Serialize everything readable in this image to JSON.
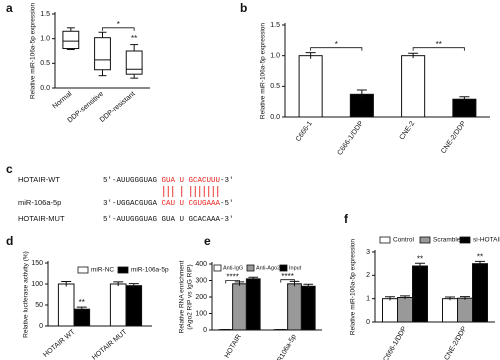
{
  "chart_data": [
    {
      "type": "box",
      "panel": "a",
      "y_label": "Relative miR-106a-5p expression",
      "categories": [
        "Normal",
        "DDP-sensitive",
        "DDP-resistant"
      ],
      "boxes": [
        {
          "min": 0.78,
          "q1": 0.8,
          "median": 0.95,
          "q3": 1.15,
          "max": 1.22
        },
        {
          "min": 0.25,
          "q1": 0.37,
          "median": 0.57,
          "q3": 1.02,
          "max": 1.13
        },
        {
          "min": 0.2,
          "q1": 0.28,
          "median": 0.38,
          "q3": 0.75,
          "max": 0.88
        }
      ],
      "color": "#ffffff",
      "ylim": [
        0,
        1.5
      ],
      "yticks": [
        {
          "value": 0,
          "label": "0.0"
        },
        {
          "value": 0.5,
          "label": "0.5"
        },
        {
          "value": 1,
          "label": "1.0"
        },
        {
          "value": 1.5,
          "label": "1.5"
        }
      ],
      "annotations": [
        "*",
        "**"
      ]
    },
    {
      "type": "bar",
      "panel": "b",
      "y_label": "Relative miR-106a-5p expression",
      "categories": [
        "C666-1",
        "C666-1/DDP",
        "CNE-2",
        "CNE-2/DDP"
      ],
      "series": [
        {
          "values": [
            1.0,
            0.37,
            1.0,
            0.29
          ],
          "errors": [
            0.05,
            0.07,
            0.04,
            0.04
          ],
          "colors": [
            "#ffffff",
            "#000000",
            "#ffffff",
            "#000000"
          ]
        }
      ],
      "ylim": [
        0,
        1.5
      ],
      "yticks": [
        {
          "value": 0,
          "label": "0.0"
        },
        {
          "value": 0.5,
          "label": "0.5"
        },
        {
          "value": 1,
          "label": "1.0"
        },
        {
          "value": 1.5,
          "label": "1.5"
        }
      ],
      "annotations": [
        "*",
        "**"
      ]
    },
    {
      "type": "bar",
      "panel": "d",
      "y_label": "Relative luciferase activity (%)",
      "categories": [
        "HOTAIR WT",
        "HOTAIR MUT"
      ],
      "series": [
        {
          "name": "miR-NC",
          "color": "#ffffff",
          "values": [
            100,
            100
          ],
          "errors": [
            6,
            5
          ]
        },
        {
          "name": "miR-106a-5p",
          "color": "#000000",
          "values": [
            40,
            96
          ],
          "errors": [
            5,
            5
          ]
        }
      ],
      "ylim": [
        0,
        150
      ],
      "yticks": [
        0,
        50,
        100,
        150
      ],
      "annotations": [
        "**"
      ]
    },
    {
      "type": "bar",
      "panel": "e",
      "y_label": [
        "Relative RNA enrichment",
        "(Ago2 RIP vs IgG RIP)"
      ],
      "categories": [
        "HOTAIR",
        "miR106a-5p"
      ],
      "series": [
        {
          "name": "Anti-IgG",
          "color": "#ffffff",
          "values": [
            2,
            2
          ],
          "errors": [
            1,
            1
          ]
        },
        {
          "name": "Anti-Ago2",
          "color": "#999999",
          "values": [
            280,
            280
          ],
          "errors": [
            12,
            15
          ]
        },
        {
          "name": "Input",
          "color": "#000000",
          "values": [
            310,
            265
          ],
          "errors": [
            10,
            12
          ]
        }
      ],
      "ylim": [
        0,
        400
      ],
      "yticks": [
        0,
        100,
        200,
        300,
        400
      ],
      "annotations": [
        "****",
        "****"
      ]
    },
    {
      "type": "bar",
      "panel": "f",
      "y_label": "Relative miR-106a-5p expression",
      "categories": [
        "C666-1/DDP",
        "CNE-2/DDP"
      ],
      "series": [
        {
          "name": "Control",
          "color": "#ffffff",
          "values": [
            1.0,
            1.0
          ],
          "errors": [
            0.08,
            0.07
          ]
        },
        {
          "name": "Scramble",
          "color": "#999999",
          "values": [
            1.05,
            1.02
          ],
          "errors": [
            0.07,
            0.07
          ]
        },
        {
          "name": "si-HOTAIR",
          "color": "#000000",
          "values": [
            2.4,
            2.5
          ],
          "errors": [
            0.12,
            0.1
          ]
        }
      ],
      "ylim": [
        0,
        3
      ],
      "yticks": [
        0,
        1,
        2,
        3
      ],
      "annotations": [
        "**",
        "**"
      ]
    }
  ],
  "sequence_panel": {
    "panel": "c",
    "rows": [
      {
        "label": "HOTAIR-WT",
        "parts": [
          {
            "text": "5'-AUUGGGUAG ",
            "color": "#111111"
          },
          {
            "text": "GUA U GCACUUU",
            "color": "#e8231f"
          },
          {
            "text": "-3'",
            "color": "#111111"
          }
        ]
      },
      {
        "label": "miR-106a-5p",
        "parts": [
          {
            "text": "3'-UGGACGUGA ",
            "color": "#111111"
          },
          {
            "text": "CAU U CGUGAAA",
            "color": "#e8231f"
          },
          {
            "text": "-5'",
            "color": "#111111"
          }
        ]
      },
      {
        "label": "HOTAIR-MUT",
        "parts": [
          {
            "text": "5'-AUUGGGUAG GUA U GCACAAA-3'",
            "color": "#111111"
          }
        ]
      }
    ]
  }
}
